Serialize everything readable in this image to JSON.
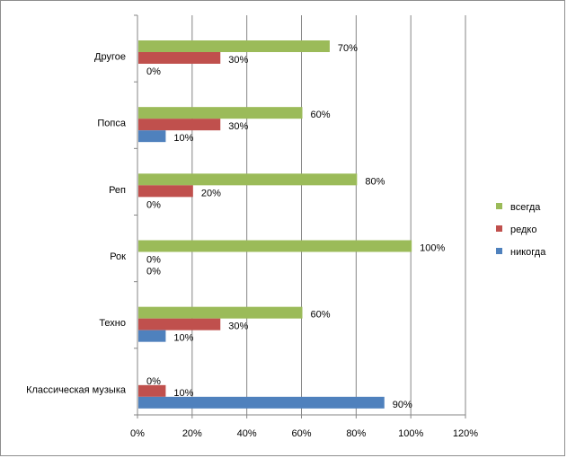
{
  "chart_data": {
    "type": "bar",
    "orientation": "horizontal",
    "categories": [
      "Другое",
      "Попса",
      "Реп",
      "Рок",
      "Техно",
      "Классическая музыка"
    ],
    "series": [
      {
        "name": "всегда",
        "color": "#9BBB59",
        "values": [
          70,
          60,
          80,
          100,
          60,
          0
        ]
      },
      {
        "name": "редко",
        "color": "#C0504D",
        "values": [
          30,
          30,
          20,
          0,
          30,
          10
        ]
      },
      {
        "name": "никогда",
        "color": "#4F81BD",
        "values": [
          0,
          10,
          0,
          0,
          10,
          90
        ]
      }
    ],
    "data_labels": [
      [
        "70%",
        "30%",
        "0%"
      ],
      [
        "60%",
        "30%",
        "10%"
      ],
      [
        "80%",
        "20%",
        "0%"
      ],
      [
        "100%",
        "0%",
        "0%"
      ],
      [
        "60%",
        "30%",
        "10%"
      ],
      [
        "0%",
        "10%",
        "90%"
      ]
    ],
    "x_ticks": [
      "0%",
      "20%",
      "40%",
      "60%",
      "80%",
      "100%",
      "120%"
    ],
    "xlim": [
      0,
      120
    ],
    "grid": true,
    "legend_position": "right"
  }
}
